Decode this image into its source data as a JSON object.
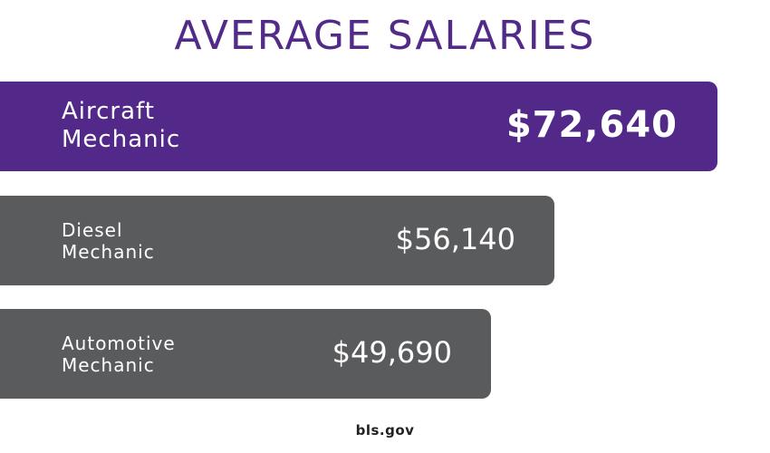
{
  "colors": {
    "title": "#522a88",
    "highlight_bar": "#522888",
    "other_bar": "#5a5b5d"
  },
  "chart_data": {
    "type": "bar",
    "orientation": "horizontal",
    "title": "AVERAGE SALARIES",
    "categories": [
      [
        "Aircraft",
        "Mechanic"
      ],
      [
        "Diesel",
        "Mechanic"
      ],
      [
        "Automotive",
        "Mechanic"
      ]
    ],
    "values": [
      72640,
      56140,
      49690
    ],
    "value_labels": [
      "$72,640",
      "$56,140",
      "$49,690"
    ],
    "highlighted_index": 0,
    "xlim": [
      0,
      72640
    ],
    "grid": false,
    "legend": "none"
  },
  "source": "bls.gov"
}
